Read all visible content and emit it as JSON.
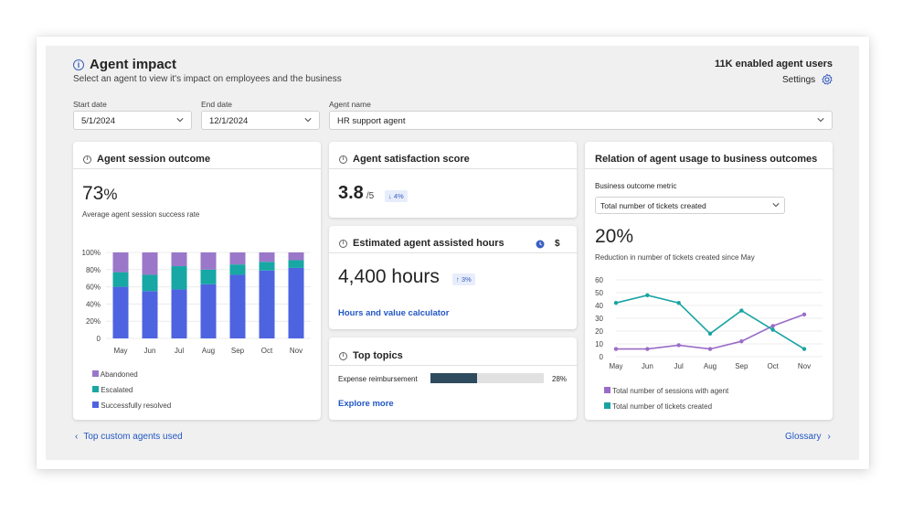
{
  "header": {
    "title": "Agent impact",
    "subtitle": "Select an agent to view it's impact on employees and the business",
    "enabled_users": "11K enabled agent users",
    "settings_label": "Settings"
  },
  "filters": {
    "start_date_label": "Start date",
    "start_date_value": "5/1/2024",
    "end_date_label": "End date",
    "end_date_value": "12/1/2024",
    "agent_name_label": "Agent name",
    "agent_name_value": "HR support agent"
  },
  "session_card": {
    "title": "Agent session outcome",
    "metric_value": "73",
    "metric_unit": "%",
    "metric_caption": "Average agent session success rate",
    "legend": [
      "Abandoned",
      "Escalated",
      "Successfully resolved"
    ]
  },
  "satisfaction_card": {
    "title": "Agent satisfaction score",
    "value": "3.8",
    "suffix": "/5",
    "badge": "4%"
  },
  "hours_card": {
    "title": "Estimated agent assisted hours",
    "value": "4,400 hours",
    "badge": "3%",
    "currency_symbol": "$",
    "link": "Hours and value calculator"
  },
  "topics_card": {
    "title": "Top topics",
    "topic_name": "Expense reimbursement",
    "topic_percent": 28,
    "topic_percent_label": "28%",
    "link": "Explore more"
  },
  "relation_card": {
    "title": "Relation of agent usage to business outcomes",
    "metric_label": "Business outcome metric",
    "metric_select": "Total number of tickets created",
    "value": "20%",
    "caption": "Reduction in number of tickets created since May"
  },
  "footer": {
    "left_link": "Top custom agents used",
    "right_link": "Glossary"
  },
  "colors": {
    "abandoned": "#9a77c9",
    "escalated": "#17a7a4",
    "resolved": "#4e63e0",
    "sessions_line": "#9a6cc7",
    "tickets_line": "#1aa3a3",
    "topic_bar": "#2f4c5e",
    "link": "#2257c4"
  },
  "chart_data": [
    {
      "type": "bar",
      "stacked": true,
      "categories": [
        "May",
        "Jun",
        "Jul",
        "Aug",
        "Sep",
        "Oct",
        "Nov"
      ],
      "ylim": [
        0,
        100
      ],
      "yticks": [
        "0",
        "20%",
        "40%",
        "60%",
        "80%",
        "100%"
      ],
      "series": [
        {
          "name": "Successfully resolved",
          "values": [
            60,
            55,
            57,
            63,
            74,
            79,
            82
          ]
        },
        {
          "name": "Escalated",
          "values": [
            17,
            19,
            27,
            17,
            12,
            10,
            9
          ]
        },
        {
          "name": "Abandoned",
          "values": [
            23,
            26,
            16,
            20,
            14,
            11,
            9
          ]
        }
      ]
    },
    {
      "type": "line",
      "categories": [
        "May",
        "Jun",
        "Jul",
        "Aug",
        "Sep",
        "Oct",
        "Nov"
      ],
      "ylim": [
        0,
        60
      ],
      "yticks": [
        "0",
        "10",
        "20",
        "30",
        "40",
        "50",
        "60"
      ],
      "series": [
        {
          "name": "Total number of sessions with agent",
          "values": [
            6,
            6,
            9,
            6,
            12,
            24,
            33
          ]
        },
        {
          "name": "Total number of tickets created",
          "values": [
            42,
            48,
            42,
            18,
            36,
            21,
            6
          ]
        }
      ]
    }
  ]
}
